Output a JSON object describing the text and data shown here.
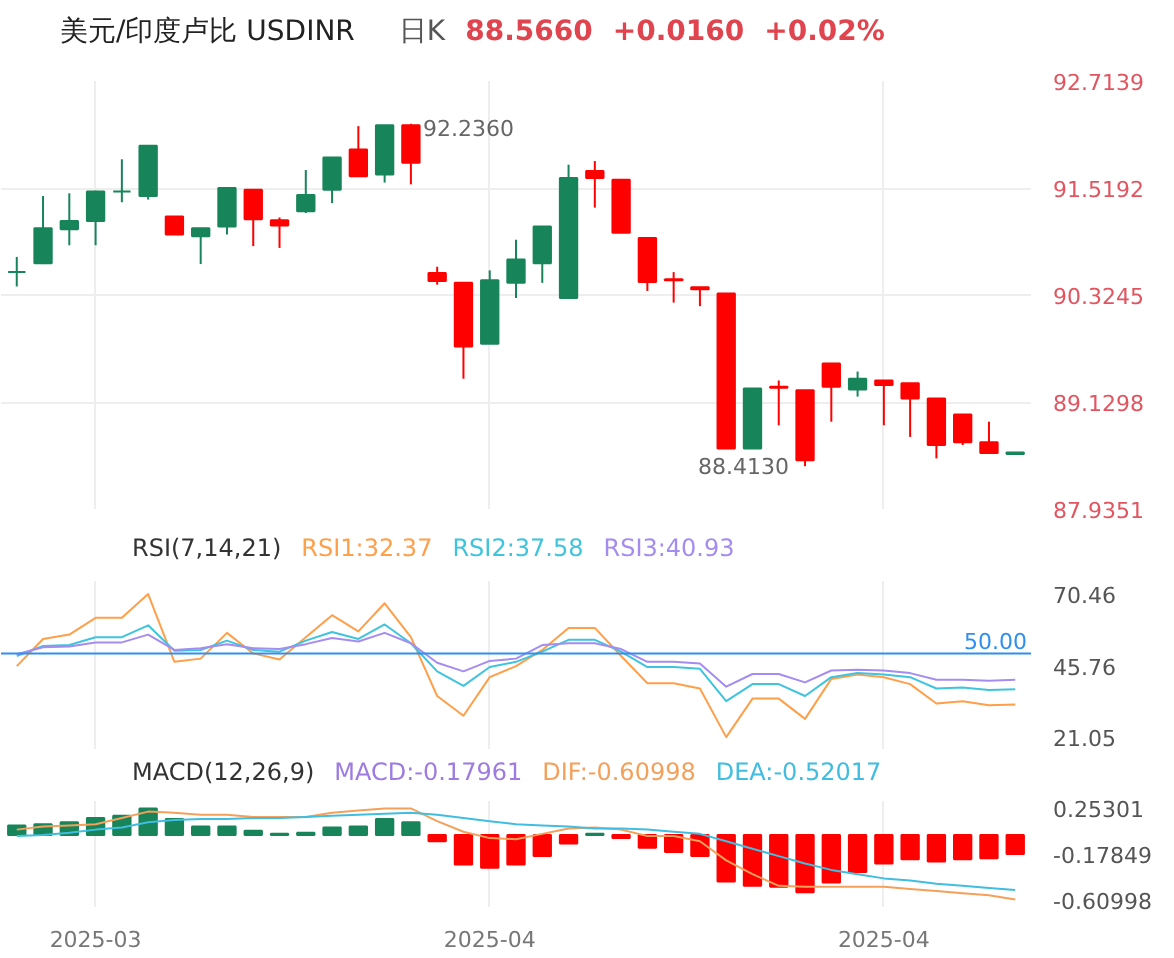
{
  "chart_data": [
    {
      "type": "candlestick",
      "title": "美元/印度卢比 USDINR",
      "annotations": [
        "日K",
        "88.5660",
        "+0.0160",
        "+0.02%",
        "92.2360",
        "88.4130"
      ],
      "categories": [
        null,
        null,
        null,
        "2025-03",
        null,
        null,
        null,
        null,
        null,
        null,
        null,
        null,
        null,
        null,
        null,
        null,
        null,
        null,
        "2025-04",
        null,
        null,
        null,
        null,
        null,
        null,
        null,
        null,
        null,
        null,
        null,
        null,
        null,
        null,
        "2025-04",
        null,
        null,
        null,
        null,
        null
      ],
      "ohlc": [
        [
          90.58,
          90.75,
          90.42,
          90.58
        ],
        [
          90.68,
          91.43,
          90.67,
          91.07
        ],
        [
          91.06,
          91.46,
          90.88,
          91.15
        ],
        [
          91.15,
          91.49,
          90.88,
          91.48
        ],
        [
          91.48,
          91.84,
          91.36,
          91.48
        ],
        [
          91.43,
          91.99,
          91.39,
          91.99
        ],
        [
          91.2,
          91.2,
          91.0,
          91.0
        ],
        [
          90.98,
          91.07,
          90.67,
          91.07
        ],
        [
          91.09,
          91.52,
          91.0,
          91.52
        ],
        [
          91.5,
          91.5,
          90.87,
          91.17
        ],
        [
          91.16,
          91.19,
          90.85,
          91.1
        ],
        [
          91.26,
          91.72,
          91.24,
          91.44
        ],
        [
          91.5,
          91.86,
          91.35,
          91.86
        ],
        [
          91.95,
          92.21,
          91.65,
          91.65
        ],
        [
          91.67,
          92.22,
          91.58,
          92.22
        ],
        [
          92.22,
          92.236,
          91.56,
          91.8
        ],
        [
          90.57,
          90.64,
          90.44,
          90.48
        ],
        [
          90.46,
          90.46,
          89.39,
          89.75
        ],
        [
          89.78,
          90.6,
          89.78,
          90.49
        ],
        [
          90.46,
          90.94,
          90.29,
          90.72
        ],
        [
          90.68,
          91.09,
          90.46,
          91.09
        ],
        [
          90.29,
          91.78,
          90.29,
          91.63
        ],
        [
          91.71,
          91.82,
          91.3,
          91.63
        ],
        [
          91.61,
          91.61,
          91.02,
          91.02
        ],
        [
          90.96,
          90.96,
          90.37,
          90.47
        ],
        [
          90.5,
          90.58,
          90.24,
          90.49
        ],
        [
          90.41,
          90.41,
          90.2,
          90.39
        ],
        [
          90.34,
          90.34,
          88.61,
          88.61
        ],
        [
          88.61,
          89.28,
          88.61,
          89.28
        ],
        [
          89.3,
          89.37,
          88.87,
          89.29
        ],
        [
          89.26,
          89.26,
          88.413,
          88.48
        ],
        [
          89.56,
          89.56,
          88.91,
          89.3
        ],
        [
          89.27,
          89.47,
          89.19,
          89.39
        ],
        [
          89.37,
          89.37,
          88.87,
          89.32
        ],
        [
          89.34,
          89.34,
          88.74,
          89.17
        ],
        [
          89.17,
          89.17,
          88.5,
          88.65
        ],
        [
          88.99,
          88.99,
          88.65,
          88.68
        ],
        [
          88.68,
          88.91,
          88.56,
          88.56
        ],
        [
          88.55,
          88.566,
          88.55,
          88.566
        ]
      ],
      "colors": [
        "#178459",
        "#178459",
        "#178459",
        "#178459",
        "#178459",
        "#178459",
        "#ff0000",
        "#178459",
        "#178459",
        "#ff0000",
        "#ff0000",
        "#178459",
        "#178459",
        "#ff0000",
        "#178459",
        "#ff0000",
        "#ff0000",
        "#ff0000",
        "#178459",
        "#178459",
        "#178459",
        "#178459",
        "#ff0000",
        "#ff0000",
        "#ff0000",
        "#ff0000",
        "#ff0000",
        "#ff0000",
        "#178459",
        "#ff0000",
        "#ff0000",
        "#ff0000",
        "#178459",
        "#ff0000",
        "#ff0000",
        "#ff0000",
        "#ff0000",
        "#ff0000",
        "#178459"
      ],
      "ylim": [
        87.9351,
        92.7139
      ],
      "yticks": [
        87.9351,
        89.1298,
        90.3245,
        91.5192,
        92.7139
      ],
      "grid": true,
      "tick_labels": "y"
    },
    {
      "type": "line",
      "title": "RSI(7,14,21)",
      "categories": [
        null,
        null,
        null,
        "2025-03",
        null,
        null,
        null,
        null,
        null,
        null,
        null,
        null,
        null,
        null,
        null,
        null,
        null,
        null,
        "2025-04",
        null,
        null,
        null,
        null,
        null,
        null,
        null,
        null,
        null,
        null,
        null,
        null,
        null,
        null,
        "2025-04",
        null,
        null,
        null,
        null,
        null
      ],
      "series": [
        {
          "name": "RSI1:32.37",
          "color": "#ff9f4a",
          "values": [
            45.6,
            55.0,
            56.5,
            62.3,
            62.3,
            70.5,
            47.1,
            48.2,
            57.1,
            50.0,
            47.9,
            55.6,
            63.2,
            57.6,
            67.3,
            55.6,
            35.3,
            28.5,
            41.8,
            45.6,
            51.2,
            58.8,
            58.8,
            49.1,
            39.7,
            39.7,
            37.9,
            21.1,
            34.4,
            34.4,
            27.4,
            41.2,
            42.7,
            41.8,
            39.4,
            32.7,
            33.5,
            32.1,
            32.4
          ]
        },
        {
          "name": "RSI2:37.58",
          "color": "#3ec4dc",
          "values": [
            49.1,
            52.6,
            52.9,
            55.6,
            55.6,
            59.7,
            50.9,
            51.2,
            54.4,
            51.2,
            50.6,
            54.4,
            57.4,
            55.0,
            60.0,
            53.5,
            43.8,
            38.8,
            45.3,
            47.1,
            50.6,
            54.7,
            54.7,
            50.6,
            45.3,
            45.3,
            44.7,
            33.5,
            39.4,
            39.4,
            35.3,
            41.8,
            43.2,
            42.7,
            41.8,
            37.9,
            38.2,
            37.4,
            37.6
          ]
        },
        {
          "name": "RSI3:40.93",
          "color": "#a48cf0",
          "values": [
            49.7,
            52.1,
            52.4,
            53.8,
            53.8,
            56.5,
            51.2,
            51.8,
            53.2,
            51.8,
            51.5,
            53.2,
            55.3,
            54.1,
            57.1,
            53.5,
            46.8,
            43.8,
            47.4,
            48.2,
            52.9,
            53.5,
            53.5,
            51.5,
            47.1,
            47.1,
            46.5,
            38.5,
            42.9,
            42.9,
            40.0,
            44.1,
            44.4,
            44.1,
            43.2,
            40.9,
            40.9,
            40.6,
            40.9
          ]
        }
      ],
      "ref_lines": [
        {
          "axis": "y",
          "value": 50,
          "label": "50.00",
          "color": "#2f8fef"
        }
      ],
      "ylim": [
        17,
        75
      ],
      "yticks": [
        21.05,
        45.76,
        70.46
      ],
      "grid": "x",
      "tick_labels": "y"
    },
    {
      "type": "bar",
      "title": "MACD(12,26,9)",
      "annotations": [
        "MACD:-0.17961"
      ],
      "categories": [
        null,
        null,
        null,
        "2025-03",
        null,
        null,
        null,
        null,
        null,
        null,
        null,
        null,
        null,
        null,
        null,
        null,
        null,
        null,
        "2025-04",
        null,
        null,
        null,
        null,
        null,
        null,
        null,
        null,
        null,
        null,
        null,
        null,
        null,
        null,
        "2025-04",
        null,
        null,
        null,
        null,
        null
      ],
      "series": [
        {
          "type": "bar",
          "colors": [
            "#178459",
            "#178459",
            "#178459",
            "#178459",
            "#178459",
            "#178459",
            "#178459",
            "#178459",
            "#178459",
            "#178459",
            "#178459",
            "#178459",
            "#178459",
            "#178459",
            "#178459",
            "#178459",
            "#ff0000",
            "#ff0000",
            "#ff0000",
            "#ff0000",
            "#ff0000",
            "#ff0000",
            "#178459",
            "#ff0000",
            "#ff0000",
            "#ff0000",
            "#ff0000",
            "#ff0000",
            "#ff0000",
            "#ff0000",
            "#ff0000",
            "#ff0000",
            "#ff0000",
            "#ff0000",
            "#ff0000",
            "#ff0000",
            "#ff0000",
            "#ff0000",
            "#ff0000"
          ],
          "values": [
            0.09,
            0.1,
            0.12,
            0.16,
            0.18,
            0.25,
            0.15,
            0.08,
            0.08,
            0.04,
            0.01,
            0.02,
            0.07,
            0.08,
            0.15,
            0.12,
            -0.06,
            -0.28,
            -0.31,
            -0.28,
            -0.2,
            -0.08,
            0.01,
            -0.03,
            -0.12,
            -0.16,
            -0.2,
            -0.44,
            -0.48,
            -0.49,
            -0.54,
            -0.45,
            -0.35,
            -0.27,
            -0.23,
            -0.25,
            -0.23,
            -0.22,
            -0.18
          ]
        },
        {
          "type": "line",
          "name": "DIF:-0.60998",
          "color": "#f5a05a",
          "values": [
            0.05,
            0.08,
            0.09,
            0.1,
            0.16,
            0.22,
            0.21,
            0.19,
            0.19,
            0.17,
            0.17,
            0.17,
            0.21,
            0.23,
            0.25,
            0.25,
            0.13,
            0.03,
            -0.03,
            -0.04,
            0.01,
            0.06,
            0.07,
            0.05,
            -0.01,
            -0.01,
            -0.06,
            -0.24,
            -0.37,
            -0.48,
            -0.49,
            -0.49,
            -0.49,
            -0.49,
            -0.51,
            -0.53,
            -0.55,
            -0.57,
            -0.61
          ]
        },
        {
          "type": "line",
          "name": "DEA:-0.52017",
          "color": "#40bde0",
          "values": [
            -0.01,
            0.0,
            0.02,
            0.05,
            0.07,
            0.12,
            0.14,
            0.15,
            0.15,
            0.16,
            0.16,
            0.17,
            0.18,
            0.19,
            0.2,
            0.21,
            0.19,
            0.16,
            0.13,
            0.1,
            0.09,
            0.08,
            0.06,
            0.06,
            0.05,
            0.03,
            0.01,
            -0.06,
            -0.13,
            -0.2,
            -0.27,
            -0.33,
            -0.37,
            -0.41,
            -0.43,
            -0.46,
            -0.48,
            -0.5,
            -0.52
          ]
        }
      ],
      "ylim": [
        -0.68,
        0.32
      ],
      "yticks": [
        -0.60998,
        -0.17849,
        0.25301
      ],
      "grid": "x"
    }
  ]
}
